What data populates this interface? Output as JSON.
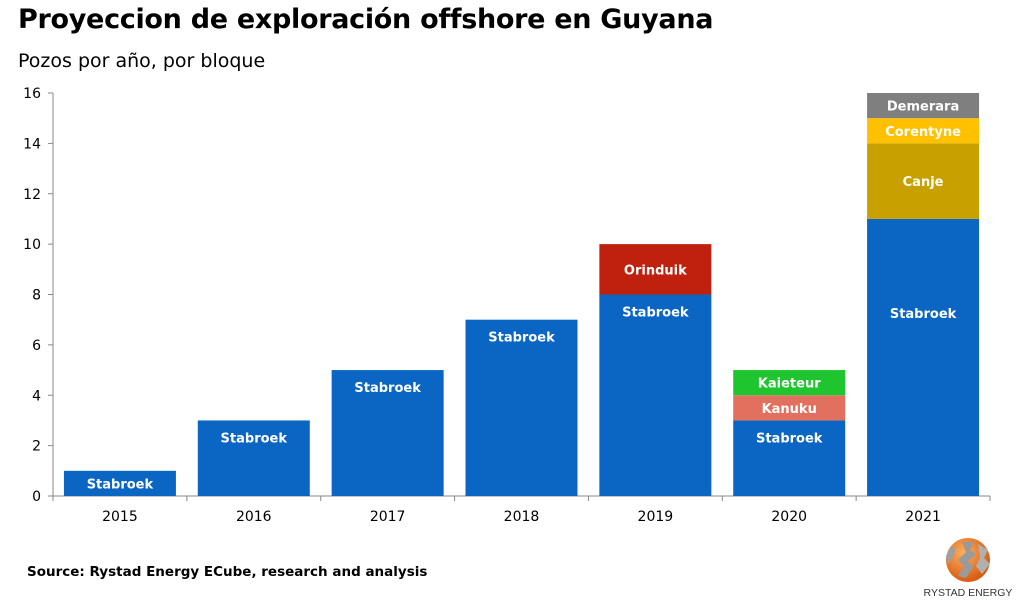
{
  "title": "Proyeccion de exploración offshore en Guyana",
  "subtitle": "Pozos por año, por bloque",
  "source": "Source: Rystad Energy ECube, research and analysis",
  "logo_text": "RYSTAD ENERGY",
  "chart_data": {
    "type": "bar",
    "stacked": true,
    "title": "Proyeccion de exploración offshore en Guyana",
    "ylabel": "Pozos por año, por bloque",
    "xlabel": "",
    "ylim": [
      0,
      16
    ],
    "yticks": [
      0,
      2,
      4,
      6,
      8,
      10,
      12,
      14,
      16
    ],
    "grid": false,
    "legend": "none (segments labeled inline)",
    "categories": [
      "2015",
      "2016",
      "2017",
      "2018",
      "2019",
      "2020",
      "2021"
    ],
    "series": [
      {
        "name": "Stabroek",
        "color": "#0b66c3",
        "values": [
          1,
          3,
          5,
          7,
          8,
          3,
          11
        ]
      },
      {
        "name": "Orinduik",
        "color": "#c0200e",
        "values": [
          0,
          0,
          0,
          0,
          2,
          0,
          0
        ]
      },
      {
        "name": "Kanuku",
        "color": "#e2705f",
        "values": [
          0,
          0,
          0,
          0,
          0,
          1,
          0
        ]
      },
      {
        "name": "Kaieteur",
        "color": "#1ec52e",
        "values": [
          0,
          0,
          0,
          0,
          0,
          1,
          0
        ]
      },
      {
        "name": "Canje",
        "color": "#c8a100",
        "values": [
          0,
          0,
          0,
          0,
          0,
          0,
          3
        ]
      },
      {
        "name": "Corentyne",
        "color": "#ffc000",
        "values": [
          0,
          0,
          0,
          0,
          0,
          0,
          1
        ]
      },
      {
        "name": "Demerara",
        "color": "#7f7f7f",
        "values": [
          0,
          0,
          0,
          0,
          0,
          0,
          1
        ]
      }
    ]
  }
}
